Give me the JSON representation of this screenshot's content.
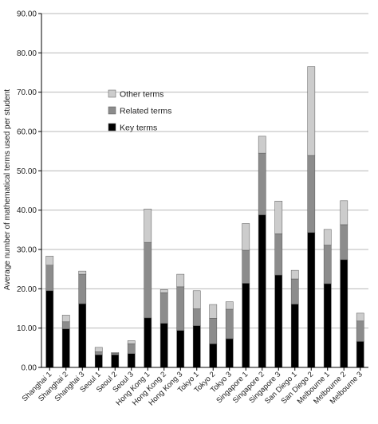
{
  "chart_data": {
    "type": "bar",
    "stacked": true,
    "title": "",
    "xlabel": "",
    "ylabel": "Average number of mathematical terms used per student",
    "ylim": [
      0,
      90
    ],
    "yticks": [
      "0.00",
      "10.00",
      "20.00",
      "30.00",
      "40.00",
      "50.00",
      "60.00",
      "70.00",
      "80.00",
      "90.00"
    ],
    "grid": true,
    "legend_position": "upper-left-inside",
    "categories": [
      "Shanghai 1",
      "Shanghai 2",
      "Shanghai 3",
      "Seoul 1",
      "Seoul 2",
      "Seoul 3",
      "Hong Kong 1",
      "Hong Kong 2",
      "Hong Kong 3",
      "Tokyo 1",
      "Tokyo 2",
      "Tokyo 3",
      "Singapore 1",
      "Singapore 2",
      "Singapore 3",
      "San Diego 1",
      "San Diego 2",
      "Melbourne 1",
      "Melbourne 2",
      "Melbourne 3"
    ],
    "series": [
      {
        "name": "Key terms",
        "color": "#000000",
        "values": [
          19.5,
          9.8,
          16.2,
          3.2,
          3.2,
          3.5,
          12.6,
          11.2,
          9.4,
          10.6,
          6.0,
          7.3,
          21.4,
          38.8,
          23.5,
          16.1,
          34.3,
          21.3,
          27.4,
          6.6
        ]
      },
      {
        "name": "Related terms",
        "color": "#8c8c8c",
        "values": [
          6.5,
          1.8,
          7.5,
          0.8,
          0.4,
          2.5,
          19.2,
          7.8,
          11.1,
          4.3,
          6.5,
          7.5,
          8.4,
          15.7,
          10.5,
          6.4,
          19.6,
          9.8,
          8.9,
          5.2
        ]
      },
      {
        "name": "Other terms",
        "color": "#cccccc",
        "values": [
          2.3,
          1.7,
          0.8,
          1.1,
          0.2,
          0.8,
          8.5,
          0.8,
          3.2,
          4.6,
          3.5,
          1.9,
          6.8,
          4.3,
          8.3,
          2.2,
          22.6,
          4.0,
          6.1,
          2.0
        ]
      }
    ],
    "legend_order": [
      "Other terms",
      "Related terms",
      "Key terms"
    ]
  }
}
